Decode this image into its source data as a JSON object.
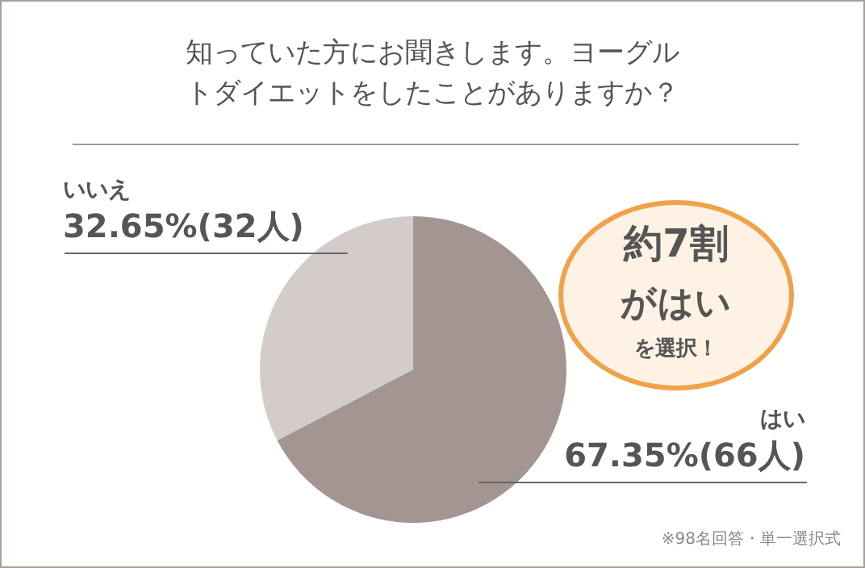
{
  "chart_data": {
    "type": "pie",
    "title": "知っていた方にお聞きします。ヨーグルトダイエットをしたことがありますか？",
    "categories": [
      "はい",
      "いいえ"
    ],
    "values": [
      67.35,
      32.65
    ],
    "colors": [
      "#a39592",
      "#d3cccb"
    ],
    "value_labels": [
      "67.35%(66人)",
      "32.65%(32人)"
    ],
    "annotations": [
      "約7割",
      "がはい",
      "を選択！",
      "※98名回答・単一選択式"
    ],
    "legend": false
  }
}
